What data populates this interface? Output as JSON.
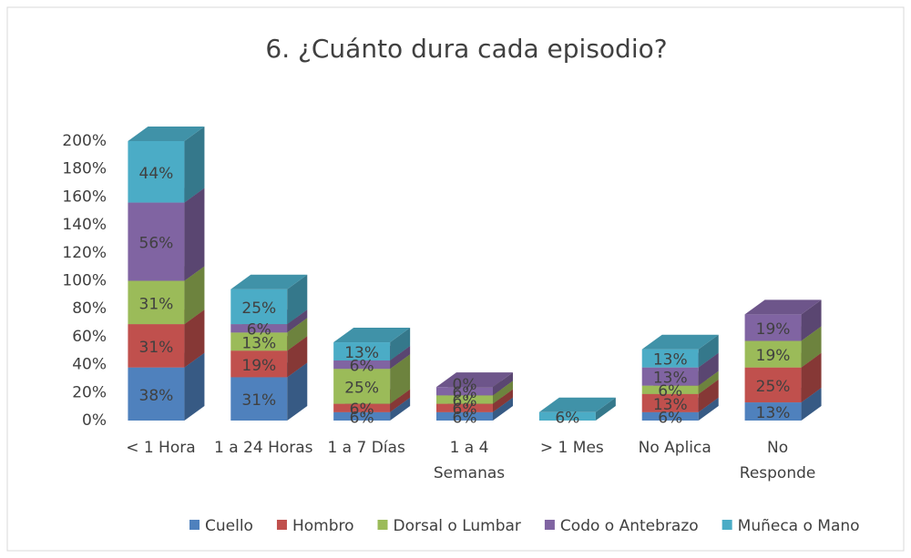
{
  "chart_data": {
    "type": "bar3d_stacked",
    "title": "6. ¿Cuánto dura cada episodio?",
    "categories": [
      "< 1 Hora",
      "1 a 24 Horas",
      "1 a 7 Días",
      "1 a 4 Semanas",
      "> 1 Mes",
      "No Aplica",
      "No Responde"
    ],
    "series": [
      {
        "name": "Cuello",
        "color": "#4f81bd",
        "values": [
          38,
          31,
          6,
          6,
          0,
          6,
          13
        ],
        "value_labels": [
          "38%",
          "31%",
          "6%",
          "6%",
          null,
          "6%",
          "13%"
        ]
      },
      {
        "name": "Hombro",
        "color": "#c0504d",
        "values": [
          31,
          19,
          6,
          6,
          0,
          13,
          25
        ],
        "value_labels": [
          "31%",
          "19%",
          "6%",
          "6%",
          null,
          "13%",
          "25%"
        ]
      },
      {
        "name": "Dorsal o Lumbar",
        "color": "#9bbb59",
        "values": [
          31,
          13,
          25,
          6,
          0,
          6,
          19
        ],
        "value_labels": [
          "31%",
          "13%",
          "25%",
          "6%",
          null,
          "6%",
          "19%"
        ]
      },
      {
        "name": "Codo o Antebrazo",
        "color": "#8064a2",
        "values": [
          56,
          6,
          6,
          6,
          0,
          13,
          19
        ],
        "value_labels": [
          "56%",
          "6%",
          "6%",
          "6%",
          null,
          "13%",
          "19%"
        ]
      },
      {
        "name": "Muñeca o Mano",
        "color": "#4bacc6",
        "values": [
          44,
          25,
          13,
          0,
          6,
          13,
          0
        ],
        "value_labels": [
          "44%",
          "25%",
          "13%",
          "0%",
          "6%",
          "13%",
          null
        ]
      }
    ],
    "ylim": [
      0,
      200
    ],
    "yticks": [
      {
        "value": 0,
        "label": "0%"
      },
      {
        "value": 20,
        "label": "20%"
      },
      {
        "value": 40,
        "label": "40%"
      },
      {
        "value": 60,
        "label": "60%"
      },
      {
        "value": 80,
        "label": "80%"
      },
      {
        "value": 100,
        "label": "100%"
      },
      {
        "value": 120,
        "label": "120%"
      },
      {
        "value": 140,
        "label": "140%"
      },
      {
        "value": 160,
        "label": "160%"
      },
      {
        "value": 180,
        "label": "180%"
      },
      {
        "value": 200,
        "label": "200%"
      }
    ],
    "legend": "bottom"
  }
}
